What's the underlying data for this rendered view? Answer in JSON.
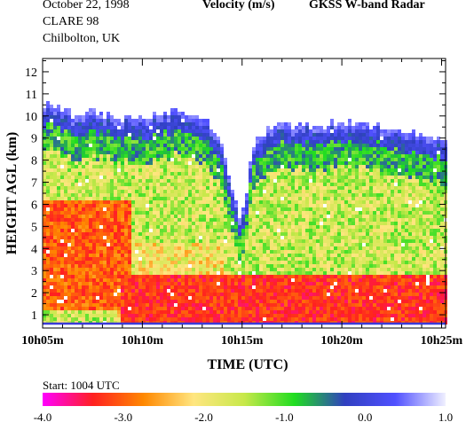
{
  "header": {
    "date": "October  22, 1998",
    "campaign": "CLARE 98",
    "location": "Chilbolton, UK",
    "quantity": "Velocity (m/s)",
    "instrument": "GKSS  W-band Radar"
  },
  "footer": {
    "start": "Start: 1004 UTC"
  },
  "chart_data": {
    "type": "heatmap",
    "title": "Velocity (m/s)",
    "xlabel": "TIME (UTC)",
    "ylabel": "HEIGHT AGL (km)",
    "x_tick_labels": [
      "10h05m",
      "10h10m",
      "10h15m",
      "10h20m",
      "10h25m"
    ],
    "x_tick_minutes": [
      5,
      10,
      15,
      20,
      25
    ],
    "xlim_minutes": [
      5,
      25.2
    ],
    "y_ticks": [
      1,
      2,
      3,
      4,
      5,
      6,
      7,
      8,
      9,
      10,
      11,
      12
    ],
    "ylim": [
      0.4,
      12.6
    ],
    "colorbar": {
      "min": -4.0,
      "max": 1.0,
      "tick_labels": [
        "-4.0",
        "-3.0",
        "-2.0",
        "-1.0",
        "0.0",
        "1.0"
      ],
      "tick_values": [
        -4,
        -3,
        -2,
        -1,
        0,
        1
      ],
      "colors": [
        "#ff00ff",
        "#ff2020",
        "#ff8800",
        "#ffe680",
        "#c8e84a",
        "#20dd20",
        "#3040c0",
        "#5050ff",
        "#f0f0ff"
      ]
    },
    "cloud_top_profile_km": [
      [
        5.0,
        10.6
      ],
      [
        5.6,
        10.3
      ],
      [
        6.5,
        10.1
      ],
      [
        7.5,
        10.2
      ],
      [
        8.5,
        10.0
      ],
      [
        9.5,
        9.9
      ],
      [
        10.5,
        10.0
      ],
      [
        11.5,
        10.2
      ],
      [
        12.5,
        10.1
      ],
      [
        13.2,
        9.8
      ],
      [
        13.8,
        9.1
      ],
      [
        14.3,
        7.6
      ],
      [
        14.6,
        6.2
      ],
      [
        14.9,
        5.5
      ],
      [
        15.2,
        6.4
      ],
      [
        15.5,
        8.4
      ],
      [
        16.0,
        9.2
      ],
      [
        16.8,
        9.6
      ],
      [
        18.0,
        9.6
      ],
      [
        20.0,
        9.7
      ],
      [
        22.0,
        9.6
      ],
      [
        24.0,
        9.2
      ],
      [
        25.2,
        9.0
      ]
    ],
    "surface_line_km": 0.6
  }
}
